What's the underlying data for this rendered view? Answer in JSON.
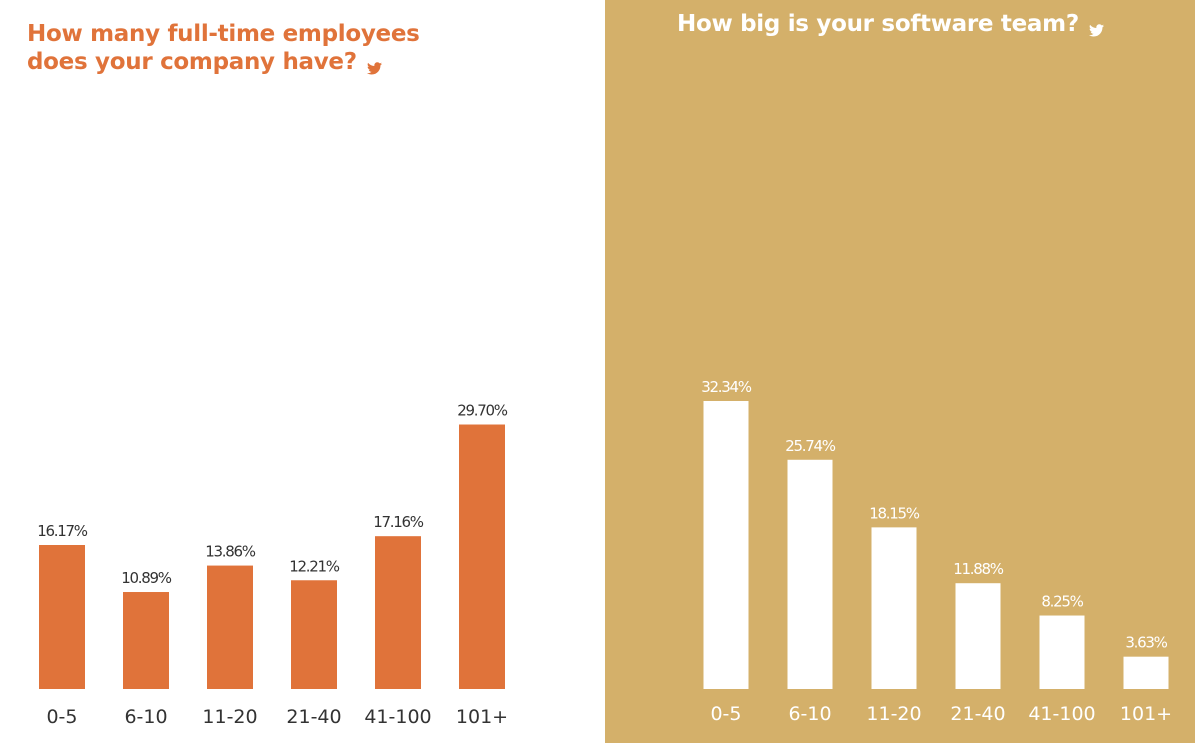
{
  "colors": {
    "left_accent": "#e0733a",
    "left_text": "#333333",
    "right_background": "#d4b06a",
    "right_bar": "#ffffff",
    "right_text": "#ffffff"
  },
  "icons": {
    "share": "twitter-icon"
  },
  "chart_data": [
    {
      "type": "bar",
      "title_lines": [
        "How many full-time employees",
        "does your company have?"
      ],
      "categories": [
        "0-5",
        "6-10",
        "11-20",
        "21-40",
        "41-100",
        "101+"
      ],
      "values": [
        16.17,
        10.89,
        13.86,
        12.21,
        17.16,
        29.7
      ],
      "value_labels": [
        "16.17%",
        "10.89%",
        "13.86%",
        "12.21%",
        "17.16%",
        "29.70%"
      ],
      "unit": "%",
      "ylim": [
        0,
        32.34
      ],
      "grid": false,
      "legend": "none"
    },
    {
      "type": "bar",
      "title_lines": [
        "How big is your software team?"
      ],
      "categories": [
        "0-5",
        "6-10",
        "11-20",
        "21-40",
        "41-100",
        "101+"
      ],
      "values": [
        32.34,
        25.74,
        18.15,
        11.88,
        8.25,
        3.63
      ],
      "value_labels": [
        "32.34%",
        "25.74%",
        "18.15%",
        "11.88%",
        "8.25%",
        "3.63%"
      ],
      "unit": "%",
      "ylim": [
        0,
        32.34
      ],
      "grid": false,
      "legend": "none"
    }
  ]
}
